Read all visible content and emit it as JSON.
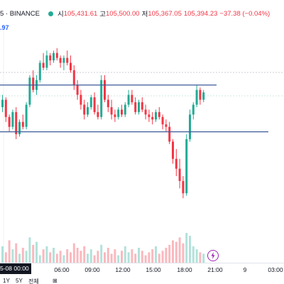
{
  "header": {
    "symbol_suffix": "5 · BINANCE",
    "open_label": "시",
    "open_value": "105,431.61",
    "high_label": "고",
    "high_value": "105,500.00",
    "low_label": "저",
    "low_value": "105,367.05",
    "close_value": "105,394.23",
    "change_value": "−37.38 (−0.04%)",
    "status_color": "#22ab94"
  },
  "price_tag": ".97",
  "time_axis": {
    "current_label": "5-08  00:00",
    "ticks": [
      "06:00",
      "09:00",
      "12:00",
      "15:00",
      "18:00",
      "21:00",
      "9",
      "03:00"
    ]
  },
  "bottom_toolbar": [
    "1Y",
    "5Y",
    "전체",
    "⊞"
  ],
  "colors": {
    "up": "#22ab94",
    "down": "#f23645",
    "line": "#3d5a99"
  },
  "chart_data": {
    "type": "candlestick",
    "x_start": "00:00",
    "x_interval_minutes": 15,
    "horizontal_levels": [
      105520,
      105330
    ],
    "candles": [
      [
        105430,
        105480,
        105410,
        105460
      ],
      [
        105460,
        105470,
        105370,
        105390
      ],
      [
        105390,
        105400,
        105330,
        105350
      ],
      [
        105350,
        105420,
        105340,
        105410
      ],
      [
        105410,
        105430,
        105300,
        105320
      ],
      [
        105320,
        105380,
        105310,
        105370
      ],
      [
        105370,
        105400,
        105340,
        105350
      ],
      [
        105350,
        105450,
        105340,
        105440
      ],
      [
        105440,
        105560,
        105430,
        105550
      ],
      [
        105550,
        105580,
        105490,
        105500
      ],
      [
        105500,
        105560,
        105480,
        105540
      ],
      [
        105540,
        105620,
        105530,
        105610
      ],
      [
        105610,
        105650,
        105580,
        105590
      ],
      [
        105590,
        105660,
        105580,
        105640
      ],
      [
        105640,
        105650,
        105600,
        105620
      ],
      [
        105620,
        105660,
        105610,
        105650
      ],
      [
        105650,
        105670,
        105620,
        105630
      ],
      [
        105630,
        105640,
        105590,
        105610
      ],
      [
        105610,
        105640,
        105580,
        105630
      ],
      [
        105630,
        105660,
        105600,
        105610
      ],
      [
        105610,
        105640,
        105570,
        105580
      ],
      [
        105580,
        105600,
        105500,
        105520
      ],
      [
        105520,
        105540,
        105460,
        105480
      ],
      [
        105480,
        105500,
        105420,
        105440
      ],
      [
        105440,
        105460,
        105380,
        105400
      ],
      [
        105400,
        105450,
        105390,
        105430
      ],
      [
        105430,
        105480,
        105420,
        105470
      ],
      [
        105470,
        105490,
        105400,
        105410
      ],
      [
        105410,
        105440,
        105380,
        105390
      ],
      [
        105390,
        105560,
        105380,
        105540
      ],
      [
        105540,
        105560,
        105450,
        105460
      ],
      [
        105460,
        105480,
        105410,
        105430
      ],
      [
        105430,
        105460,
        105380,
        105400
      ],
      [
        105400,
        105420,
        105370,
        105390
      ],
      [
        105390,
        105430,
        105380,
        105420
      ],
      [
        105420,
        105440,
        105390,
        105400
      ],
      [
        105400,
        105450,
        105390,
        105440
      ],
      [
        105440,
        105500,
        105430,
        105480
      ],
      [
        105480,
        105500,
        105440,
        105450
      ],
      [
        105450,
        105470,
        105400,
        105410
      ],
      [
        105410,
        105460,
        105400,
        105450
      ],
      [
        105450,
        105470,
        105410,
        105420
      ],
      [
        105420,
        105440,
        105380,
        105400
      ],
      [
        105400,
        105420,
        105370,
        105390
      ],
      [
        105390,
        105410,
        105360,
        105380
      ],
      [
        105380,
        105420,
        105370,
        105410
      ],
      [
        105410,
        105430,
        105380,
        105390
      ],
      [
        105390,
        105400,
        105340,
        105360
      ],
      [
        105360,
        105380,
        105330,
        105350
      ],
      [
        105350,
        105370,
        105280,
        105290
      ],
      [
        105290,
        105300,
        105200,
        105220
      ],
      [
        105220,
        105260,
        105150,
        105180
      ],
      [
        105180,
        105220,
        105100,
        105130
      ],
      [
        105130,
        105150,
        105060,
        105080
      ],
      [
        105080,
        105320,
        105070,
        105300
      ],
      [
        105300,
        105420,
        105290,
        105400
      ],
      [
        105400,
        105450,
        105380,
        105440
      ],
      [
        105440,
        105520,
        105430,
        105500
      ],
      [
        105500,
        105510,
        105440,
        105460
      ],
      [
        105460,
        105500,
        105450,
        105490
      ]
    ],
    "volume": [
      22,
      14,
      30,
      18,
      26,
      12,
      20,
      16,
      34,
      24,
      28,
      10,
      18,
      22,
      14,
      20,
      12,
      16,
      10,
      18,
      14,
      26,
      20,
      16,
      22,
      12,
      18,
      10,
      16,
      24,
      14,
      20,
      12,
      18,
      10,
      16,
      22,
      14,
      18,
      12,
      20,
      16,
      10,
      14,
      18,
      22,
      12,
      16,
      20,
      24,
      30,
      28,
      34,
      26,
      40,
      36,
      22,
      18,
      14,
      12
    ]
  }
}
